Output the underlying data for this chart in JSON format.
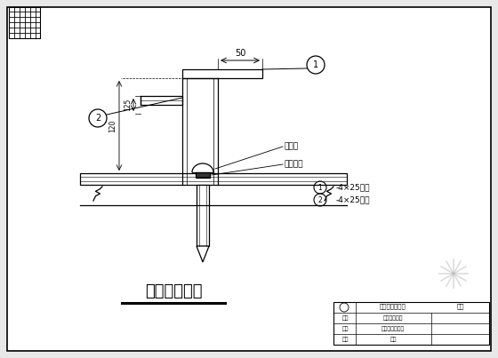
{
  "title": "避雷针节点图",
  "bg_color": "#e8e8e8",
  "drawing_bg": "#ffffff",
  "line_color": "#000000",
  "label1": "铜杆系",
  "label2": "板托架板",
  "legend1_text": "-4×25铜制",
  "legend2_text": "-4×25铜制",
  "dim_50": "50",
  "dim_125": "125",
  "dim_120": "120",
  "title_fontsize": 13
}
